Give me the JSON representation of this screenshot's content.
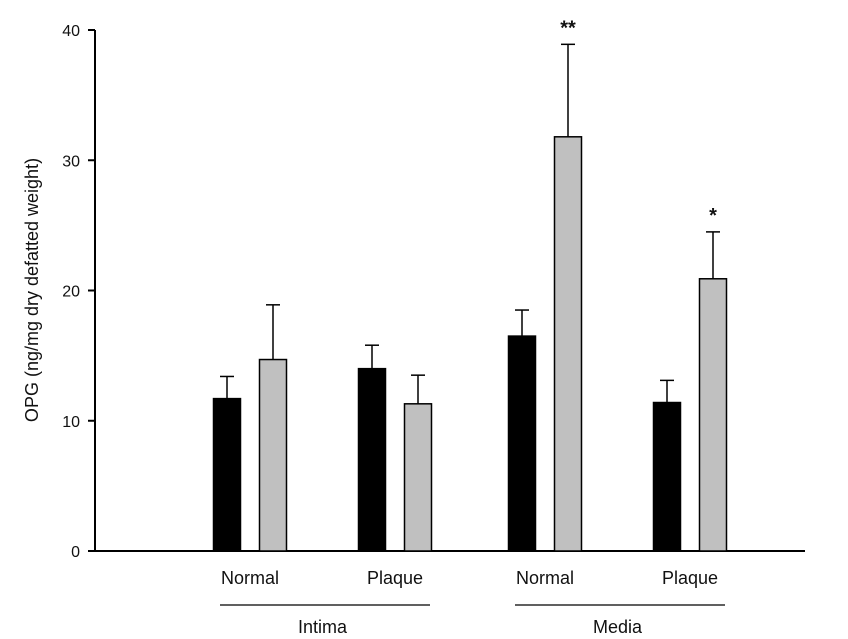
{
  "chart_data": {
    "type": "bar",
    "title": "",
    "xlabel": "",
    "ylabel": "OPG (ng/mg dry defatted weight)",
    "ylim": [
      0,
      40
    ],
    "yticks": [
      "0",
      "10",
      "20",
      "30",
      "40"
    ],
    "grid": false,
    "legend": "none",
    "categories": [
      "Normal",
      "Plaque",
      "Normal",
      "Plaque"
    ],
    "groups": [
      {
        "label": "Intima",
        "categories": [
          0,
          1
        ]
      },
      {
        "label": "Media",
        "categories": [
          2,
          3
        ]
      }
    ],
    "series": [
      {
        "color": "#000000",
        "values": [
          11.7,
          14.0,
          16.5,
          11.4
        ],
        "errors": [
          1.7,
          1.8,
          2.0,
          1.7
        ]
      },
      {
        "color": "#c0c0c0",
        "values": [
          14.7,
          11.3,
          31.8,
          20.9
        ],
        "errors": [
          4.2,
          2.2,
          7.1,
          3.6
        ]
      }
    ],
    "annotations": [
      {
        "category": 2,
        "series": 1,
        "text": "**"
      },
      {
        "category": 3,
        "series": 1,
        "text": "*"
      }
    ]
  }
}
